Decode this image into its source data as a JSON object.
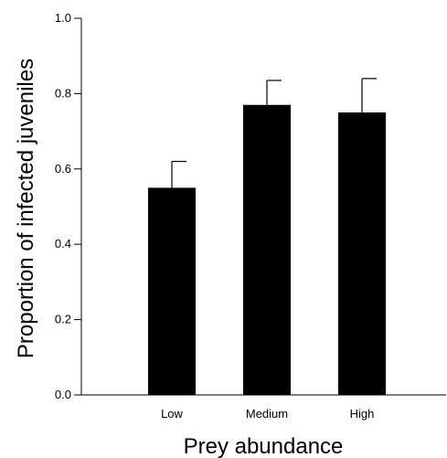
{
  "chart_data": {
    "type": "bar",
    "title": "",
    "xlabel": "Prey abundance",
    "ylabel": "Proportion of infected juveniles",
    "categories": [
      "Low",
      "Medium",
      "High"
    ],
    "values": [
      0.55,
      0.77,
      0.75
    ],
    "errors": [
      0.07,
      0.065,
      0.09
    ],
    "ylim": [
      0.0,
      1.0
    ],
    "yticks": [
      0.0,
      0.2,
      0.4,
      0.6,
      0.8,
      1.0
    ],
    "ytick_labels": [
      "0.0",
      "0.2",
      "0.4",
      "0.6",
      "0.8",
      "1.0"
    ],
    "bar_color": "#000000",
    "grid": false,
    "legend": "none"
  }
}
